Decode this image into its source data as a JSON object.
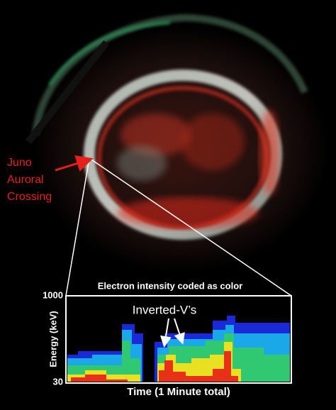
{
  "annotation": {
    "lines": [
      "Juno",
      "Auroral",
      "Crossing"
    ]
  },
  "inset": {
    "title": "Electron intensity coded as color",
    "y_axis": {
      "label": "Energy (keV)",
      "max": 1000,
      "min": 30
    },
    "x_axis_label": "Time (1 Minute total)",
    "callout": "Inverted-V’s"
  }
}
